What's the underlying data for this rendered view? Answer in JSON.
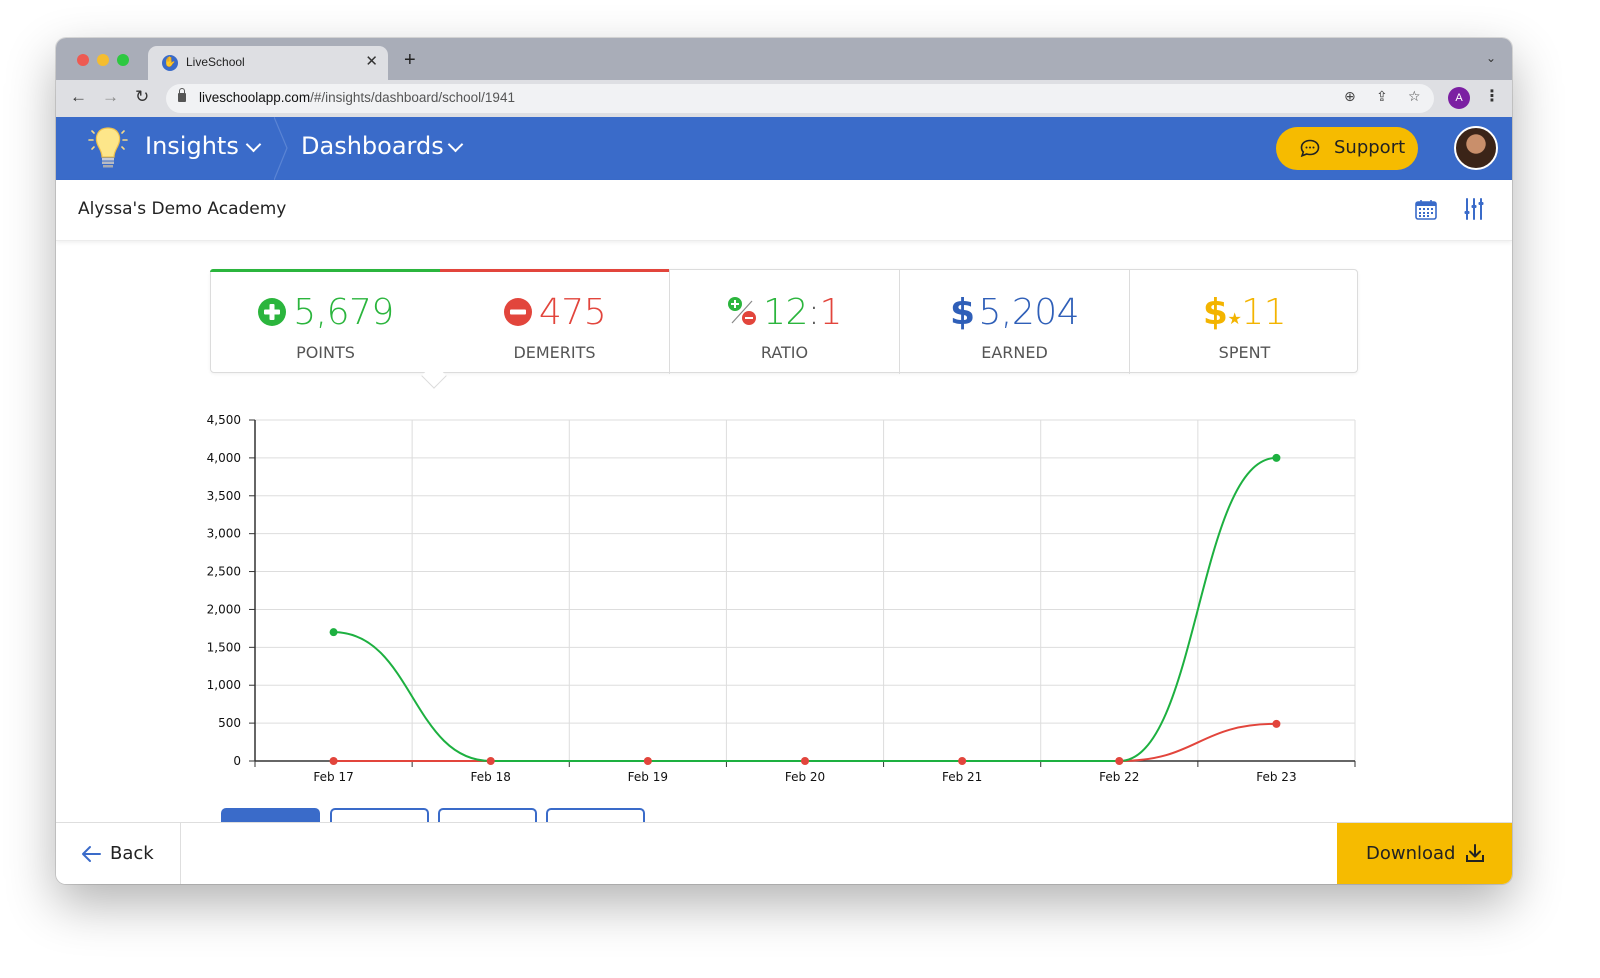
{
  "browser": {
    "tab_title": "LiveSchool",
    "url_host": "liveschoolapp.com",
    "url_path": "/#/insights/dashboard/school/1941",
    "profile_initial": "A",
    "icons": [
      "back-icon",
      "forward-icon",
      "reload-icon",
      "lock-icon",
      "zoom-icon",
      "share-icon",
      "star-icon",
      "menu-icon"
    ]
  },
  "header": {
    "app_name": "Insights",
    "section": "Dashboards",
    "support_label": "Support",
    "brand_color": "#3a6bc9",
    "accent_color": "#f6bb00"
  },
  "subheader": {
    "school_name": "Alyssa's Demo Academy"
  },
  "stats": [
    {
      "id": "points",
      "value": "5,679",
      "label": "POINTS",
      "color": "#2bb53d"
    },
    {
      "id": "demerits",
      "value": "475",
      "label": "DEMERITS",
      "color": "#e2453c"
    },
    {
      "id": "ratio",
      "value_left": "12",
      "sep": ":",
      "value_right": "1",
      "label": "RATIO"
    },
    {
      "id": "earned",
      "value": "5,204",
      "label": "EARNED",
      "color": "#2f5fb8"
    },
    {
      "id": "spent",
      "value": "11",
      "label": "SPENT",
      "color": "#f3b400"
    }
  ],
  "chart_data": {
    "type": "line",
    "title": "",
    "xlabel": "",
    "ylabel": "",
    "categories": [
      "Feb 17",
      "Feb 18",
      "Feb 19",
      "Feb 20",
      "Feb 21",
      "Feb 22",
      "Feb 23"
    ],
    "series": [
      {
        "name": "Points",
        "color": "#1db040",
        "values": [
          1700,
          0,
          0,
          0,
          0,
          0,
          4000
        ]
      },
      {
        "name": "Demerits",
        "color": "#e2453c",
        "values": [
          0,
          0,
          0,
          0,
          0,
          0,
          490
        ]
      }
    ],
    "ylim": [
      0,
      4500
    ],
    "yticks": [
      "0",
      "500",
      "1,000",
      "1,500",
      "2,000",
      "2,500",
      "3,000",
      "3,500",
      "4,000",
      "4,500"
    ],
    "grid": true,
    "legend": "none"
  },
  "footer": {
    "back_label": "Back",
    "download_label": "Download"
  }
}
